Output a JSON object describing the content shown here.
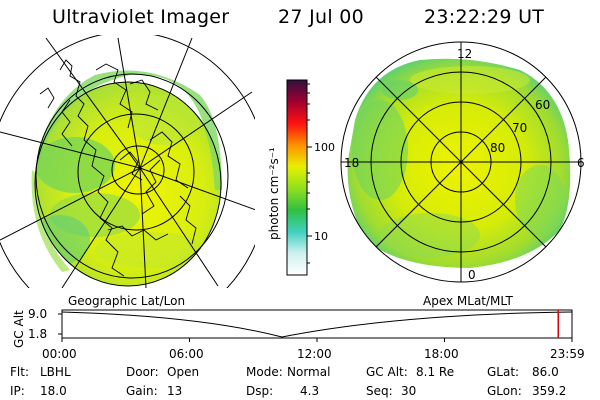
{
  "header": {
    "instrument": "Ultraviolet Imager",
    "date": "27 Jul 00",
    "time": "23:22:29 UT"
  },
  "geo_panel": {
    "label": "Geographic Lat/Lon"
  },
  "apex_panel": {
    "label": "Apex MLat/MLT",
    "mlt_labels": [
      "12",
      "18",
      "6",
      "0"
    ],
    "lat_labels": [
      "60",
      "70",
      "80"
    ]
  },
  "colorbar": {
    "unit_label": "photon cm⁻²s⁻¹",
    "ticks": [
      "100",
      "10"
    ],
    "colors": [
      "#ffffff",
      "#d0f0f0",
      "#40d0c0",
      "#30c040",
      "#90e020",
      "#e8f000",
      "#ff9000",
      "#ff1010",
      "#a00030",
      "#301040"
    ]
  },
  "timeline": {
    "axis_label": "GC Alt",
    "y_ticks": [
      "9.0",
      "1.8"
    ],
    "x_ticks": [
      "00:00",
      "06:00",
      "12:00",
      "18:00",
      "23:59"
    ],
    "current_time_fraction": 0.973
  },
  "status": {
    "flt_label": "Flt:",
    "flt_value": "LBHL",
    "ip_label": "IP:",
    "ip_value": "18.0",
    "door_label": "Door:",
    "door_value": "Open",
    "gain_label": "Gain:",
    "gain_value": "13",
    "mode_label": "Mode:",
    "mode_value": "Normal",
    "dsp_label": "Dsp:",
    "dsp_value": "4.3",
    "gcalt_label": "GC Alt:",
    "gcalt_value": "8.1 Re",
    "seq_label": "Seq:",
    "seq_value": "30",
    "glat_label": "GLat:",
    "glat_value": "86.0",
    "glon_label": "GLon:",
    "glon_value": "359.2"
  }
}
